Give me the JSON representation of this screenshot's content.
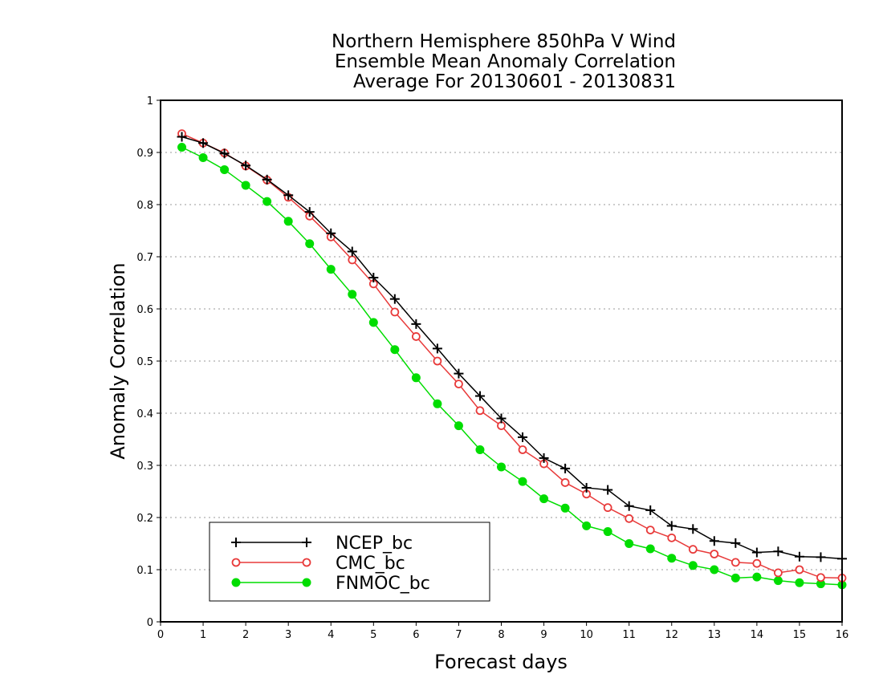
{
  "chart_data": {
    "type": "line",
    "title": [
      "Northern Hemisphere 850hPa V Wind",
      "Ensemble Mean Anomaly Correlation",
      "Average For 20130601 - 20130831"
    ],
    "xlabel": "Forecast days",
    "ylabel": "Anomaly Correlation",
    "xlim": [
      0,
      16
    ],
    "ylim": [
      0,
      1
    ],
    "xticks": [
      "0",
      "1",
      "2",
      "3",
      "4",
      "5",
      "6",
      "7",
      "8",
      "9",
      "10",
      "11",
      "12",
      "13",
      "14",
      "15",
      "16"
    ],
    "yticks": [
      "0",
      "0.1",
      "0.2",
      "0.3",
      "0.4",
      "0.5",
      "0.6",
      "0.7",
      "0.8",
      "0.9",
      "1"
    ],
    "grid": "horizontal dotted",
    "legend_position": "bottom-left",
    "x": [
      0.5,
      1,
      1.5,
      2,
      2.5,
      3,
      3.5,
      4,
      4.5,
      5,
      5.5,
      6,
      6.5,
      7,
      7.5,
      8,
      8.5,
      9,
      9.5,
      10,
      10.5,
      11,
      11.5,
      12,
      12.5,
      13,
      13.5,
      14,
      14.5,
      15,
      15.5,
      16
    ],
    "series": [
      {
        "name": "NCEP_bc",
        "color": "#000000",
        "marker": "plus",
        "values": [
          0.93,
          0.918,
          0.898,
          0.875,
          0.848,
          0.818,
          0.786,
          0.745,
          0.71,
          0.66,
          0.619,
          0.571,
          0.524,
          0.476,
          0.433,
          0.39,
          0.354,
          0.314,
          0.294,
          0.257,
          0.253,
          0.222,
          0.214,
          0.184,
          0.178,
          0.155,
          0.151,
          0.133,
          0.135,
          0.125,
          0.124,
          0.121
        ]
      },
      {
        "name": "CMC_bc",
        "color": "#e83a3a",
        "marker": "open-circle",
        "values": [
          0.936,
          0.918,
          0.899,
          0.874,
          0.847,
          0.814,
          0.778,
          0.738,
          0.694,
          0.648,
          0.594,
          0.547,
          0.5,
          0.456,
          0.405,
          0.376,
          0.33,
          0.303,
          0.267,
          0.245,
          0.219,
          0.198,
          0.176,
          0.161,
          0.139,
          0.13,
          0.114,
          0.112,
          0.094,
          0.1,
          0.085,
          0.084
        ]
      },
      {
        "name": "FNMOC_bc",
        "color": "#00dd00",
        "marker": "filled-circle",
        "values": [
          0.91,
          0.89,
          0.867,
          0.837,
          0.806,
          0.768,
          0.725,
          0.676,
          0.628,
          0.574,
          0.522,
          0.468,
          0.418,
          0.376,
          0.33,
          0.297,
          0.269,
          0.236,
          0.218,
          0.184,
          0.173,
          0.15,
          0.14,
          0.122,
          0.108,
          0.1,
          0.084,
          0.086,
          0.079,
          0.075,
          0.073,
          0.071
        ]
      }
    ]
  }
}
